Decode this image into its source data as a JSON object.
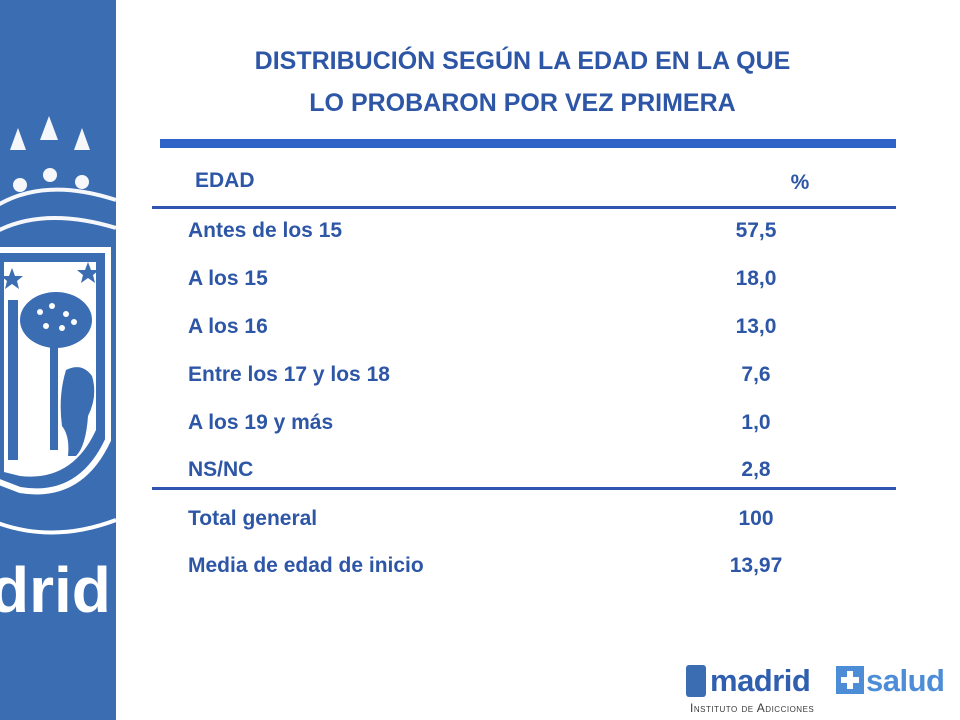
{
  "title": {
    "line1": "DISTRIBUCIÓN SEGÚN LA EDAD EN LA QUE",
    "line2": "LO PROBARON POR VEZ PRIMERA"
  },
  "table": {
    "header": {
      "label": "EDAD",
      "value": "%"
    },
    "rows": [
      {
        "label": "Antes de los 15",
        "value": "57,5"
      },
      {
        "label": "A los 15",
        "value": "18,0"
      },
      {
        "label": "A los 16",
        "value": "13,0"
      },
      {
        "label": "Entre los 17 y los 18",
        "value": "7,6"
      },
      {
        "label": "A los 19 y más",
        "value": "1,0"
      },
      {
        "label": "NS/NC",
        "value": "2,8"
      }
    ],
    "total": {
      "label": "Total general",
      "value": "100"
    },
    "mean": {
      "label": "Media de edad de inicio",
      "value": "13,97"
    }
  },
  "sidebar": {
    "watermark_text": "drid"
  },
  "brand": {
    "name": "madrid",
    "name2": "salud",
    "subtitle": "Instituto de Adicciones"
  },
  "colors": {
    "text_blue": "#2d56a6",
    "sidebar_blue": "#3b6db3",
    "rule_blue": "#2f63c8",
    "salud_blue": "#4d8dd8"
  }
}
